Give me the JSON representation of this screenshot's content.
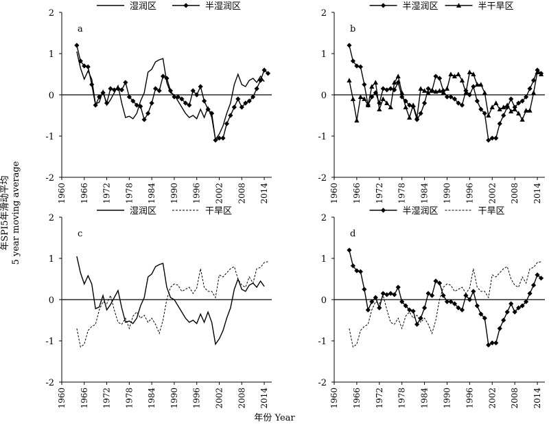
{
  "figure": {
    "ylabel_line1": "年SPI5年滑动平均",
    "ylabel_line2": "5 year moving  average",
    "xlabel": "年份 Year"
  },
  "chart_data": [
    {
      "type": "line",
      "panel_label": "a",
      "xlim": [
        1960,
        2016
      ],
      "ylim": [
        -2,
        2
      ],
      "xticks": [
        1960,
        1966,
        1972,
        1978,
        1984,
        1990,
        1996,
        2002,
        2008,
        2014
      ],
      "yticks": [
        -2,
        -1,
        0,
        1,
        2
      ],
      "zero_line": true,
      "legend": "top",
      "series": [
        {
          "name": "湿润区",
          "style": "solid",
          "marker": "none",
          "color": "#000000",
          "x": [
            1964,
            1965,
            1966,
            1967,
            1968,
            1969,
            1970,
            1971,
            1972,
            1973,
            1974,
            1975,
            1976,
            1977,
            1978,
            1979,
            1980,
            1981,
            1982,
            1983,
            1984,
            1985,
            1986,
            1987,
            1988,
            1989,
            1990,
            1991,
            1992,
            1993,
            1994,
            1995,
            1996,
            1997,
            1998,
            1999,
            2000,
            2001,
            2002,
            2003,
            2004,
            2005,
            2006,
            2007,
            2008,
            2009,
            2010,
            2011,
            2012,
            2013,
            2014
          ],
          "y": [
            1.05,
            0.65,
            0.38,
            0.58,
            0.38,
            -0.22,
            -0.18,
            0.1,
            -0.25,
            -0.12,
            0.05,
            0.22,
            -0.2,
            -0.55,
            -0.52,
            -0.58,
            -0.45,
            -0.15,
            0.05,
            0.55,
            0.62,
            0.8,
            0.85,
            0.88,
            0.3,
            0.05,
            0.0,
            -0.15,
            -0.3,
            -0.45,
            -0.55,
            -0.5,
            -0.58,
            -0.35,
            -0.55,
            -0.3,
            -0.55,
            -1.08,
            -0.95,
            -0.75,
            -0.45,
            -0.2,
            0.25,
            0.5,
            0.25,
            0.2,
            0.35,
            0.4,
            0.3,
            0.45,
            0.32
          ]
        },
        {
          "name": "半湿润区",
          "style": "solid",
          "marker": "diamond",
          "color": "#000000",
          "x": [
            1964,
            1965,
            1966,
            1967,
            1968,
            1969,
            1970,
            1971,
            1972,
            1973,
            1974,
            1975,
            1976,
            1977,
            1978,
            1979,
            1980,
            1981,
            1982,
            1983,
            1984,
            1985,
            1986,
            1987,
            1988,
            1989,
            1990,
            1991,
            1992,
            1993,
            1994,
            1995,
            1996,
            1997,
            1998,
            1999,
            2000,
            2001,
            2002,
            2003,
            2004,
            2005,
            2006,
            2007,
            2008,
            2009,
            2010,
            2011,
            2012,
            2013,
            2014,
            2015
          ],
          "y": [
            1.2,
            0.82,
            0.7,
            0.68,
            0.25,
            -0.25,
            -0.05,
            0.05,
            -0.2,
            0.15,
            0.12,
            0.15,
            0.12,
            0.3,
            -0.05,
            -0.15,
            -0.25,
            -0.28,
            -0.6,
            -0.45,
            -0.2,
            0.15,
            0.1,
            0.45,
            0.4,
            0.1,
            -0.05,
            -0.05,
            -0.1,
            -0.2,
            -0.25,
            0.1,
            0.0,
            0.2,
            -0.15,
            -0.35,
            -0.45,
            -1.1,
            -1.05,
            -1.05,
            -0.7,
            -0.5,
            -0.3,
            -0.1,
            -0.3,
            -0.2,
            -0.15,
            -0.05,
            0.15,
            0.35,
            0.6,
            0.52
          ]
        }
      ]
    },
    {
      "type": "line",
      "panel_label": "b",
      "xlim": [
        1960,
        2016
      ],
      "ylim": [
        -2,
        2
      ],
      "xticks": [
        1960,
        1966,
        1972,
        1978,
        1984,
        1990,
        1996,
        2002,
        2008,
        2014
      ],
      "yticks": [
        -2,
        -1,
        0,
        1,
        2
      ],
      "zero_line": true,
      "legend": "top",
      "series": [
        {
          "name": "半湿润区",
          "style": "solid",
          "marker": "diamond",
          "color": "#000000",
          "x": [
            1964,
            1965,
            1966,
            1967,
            1968,
            1969,
            1970,
            1971,
            1972,
            1973,
            1974,
            1975,
            1976,
            1977,
            1978,
            1979,
            1980,
            1981,
            1982,
            1983,
            1984,
            1985,
            1986,
            1987,
            1988,
            1989,
            1990,
            1991,
            1992,
            1993,
            1994,
            1995,
            1996,
            1997,
            1998,
            1999,
            2000,
            2001,
            2002,
            2003,
            2004,
            2005,
            2006,
            2007,
            2008,
            2009,
            2010,
            2011,
            2012,
            2013,
            2014,
            2015
          ],
          "y": [
            1.2,
            0.82,
            0.7,
            0.68,
            0.25,
            -0.25,
            -0.05,
            0.05,
            -0.2,
            0.15,
            0.12,
            0.15,
            0.12,
            0.3,
            -0.05,
            -0.15,
            -0.25,
            -0.28,
            -0.6,
            -0.45,
            -0.2,
            0.15,
            0.1,
            0.45,
            0.4,
            0.1,
            -0.05,
            -0.05,
            -0.1,
            -0.2,
            -0.25,
            0.1,
            0.0,
            0.2,
            -0.15,
            -0.35,
            -0.45,
            -1.1,
            -1.05,
            -1.05,
            -0.7,
            -0.5,
            -0.3,
            -0.1,
            -0.3,
            -0.2,
            -0.15,
            -0.05,
            0.15,
            0.35,
            0.6,
            0.52
          ]
        },
        {
          "name": "半干旱区",
          "style": "solid",
          "marker": "triangle",
          "color": "#000000",
          "x": [
            1964,
            1965,
            1966,
            1967,
            1968,
            1969,
            1970,
            1971,
            1972,
            1973,
            1974,
            1975,
            1976,
            1977,
            1978,
            1979,
            1980,
            1981,
            1982,
            1983,
            1984,
            1985,
            1986,
            1987,
            1988,
            1989,
            1990,
            1991,
            1992,
            1993,
            1994,
            1995,
            1996,
            1997,
            1998,
            1999,
            2000,
            2001,
            2002,
            2003,
            2004,
            2005,
            2006,
            2007,
            2008,
            2009,
            2010,
            2011,
            2012,
            2013,
            2014,
            2015
          ],
          "y": [
            0.35,
            -0.1,
            -0.62,
            -0.05,
            -0.1,
            -0.25,
            0.2,
            0.3,
            -0.35,
            -0.1,
            -0.2,
            -0.3,
            0.3,
            0.45,
            0.05,
            -0.3,
            -0.55,
            -0.25,
            -0.55,
            0.15,
            0.1,
            0.05,
            0.1,
            0.08,
            0.1,
            0.05,
            0.15,
            0.5,
            0.45,
            0.5,
            0.35,
            0.05,
            0.55,
            0.5,
            0.25,
            0.25,
            0.05,
            -0.5,
            -0.3,
            -0.2,
            -0.35,
            -0.3,
            -0.25,
            -0.4,
            -0.35,
            -0.45,
            -0.6,
            -0.38,
            -0.38,
            0.05,
            0.55,
            0.5
          ]
        }
      ]
    },
    {
      "type": "line",
      "panel_label": "c",
      "xlim": [
        1960,
        2016
      ],
      "ylim": [
        -2,
        2
      ],
      "xticks": [
        1960,
        1966,
        1972,
        1978,
        1984,
        1990,
        1996,
        2002,
        2008,
        2014
      ],
      "yticks": [
        -2,
        -1,
        0,
        1,
        2
      ],
      "zero_line": true,
      "legend": "top",
      "series": [
        {
          "name": "湿润区",
          "style": "solid",
          "marker": "none",
          "color": "#000000",
          "x": [
            1964,
            1965,
            1966,
            1967,
            1968,
            1969,
            1970,
            1971,
            1972,
            1973,
            1974,
            1975,
            1976,
            1977,
            1978,
            1979,
            1980,
            1981,
            1982,
            1983,
            1984,
            1985,
            1986,
            1987,
            1988,
            1989,
            1990,
            1991,
            1992,
            1993,
            1994,
            1995,
            1996,
            1997,
            1998,
            1999,
            2000,
            2001,
            2002,
            2003,
            2004,
            2005,
            2006,
            2007,
            2008,
            2009,
            2010,
            2011,
            2012,
            2013,
            2014
          ],
          "y": [
            1.05,
            0.65,
            0.38,
            0.58,
            0.38,
            -0.22,
            -0.18,
            0.1,
            -0.25,
            -0.12,
            0.05,
            0.22,
            -0.2,
            -0.55,
            -0.52,
            -0.58,
            -0.45,
            -0.15,
            0.05,
            0.55,
            0.62,
            0.8,
            0.85,
            0.88,
            0.3,
            0.05,
            0.0,
            -0.15,
            -0.3,
            -0.45,
            -0.55,
            -0.5,
            -0.58,
            -0.35,
            -0.55,
            -0.3,
            -0.55,
            -1.08,
            -0.95,
            -0.75,
            -0.45,
            -0.2,
            0.25,
            0.5,
            0.25,
            0.2,
            0.35,
            0.4,
            0.3,
            0.45,
            0.32
          ]
        },
        {
          "name": "干旱区",
          "style": "dashed",
          "marker": "none",
          "color": "#000000",
          "x": [
            1964,
            1965,
            1966,
            1967,
            1968,
            1969,
            1970,
            1971,
            1972,
            1973,
            1974,
            1975,
            1976,
            1977,
            1978,
            1979,
            1980,
            1981,
            1982,
            1983,
            1984,
            1985,
            1986,
            1987,
            1988,
            1989,
            1990,
            1991,
            1992,
            1993,
            1994,
            1995,
            1996,
            1997,
            1998,
            1999,
            2000,
            2001,
            2002,
            2003,
            2004,
            2005,
            2006,
            2007,
            2008,
            2009,
            2010,
            2011,
            2012,
            2013,
            2014,
            2015
          ],
          "y": [
            -0.7,
            -1.15,
            -1.08,
            -0.75,
            -0.65,
            -0.6,
            -0.25,
            -0.05,
            -0.1,
            0.1,
            -0.25,
            -0.55,
            -0.6,
            -0.45,
            -0.7,
            -0.4,
            -0.3,
            -0.45,
            -0.38,
            -0.55,
            -0.45,
            -0.6,
            -0.82,
            -0.5,
            0.0,
            0.3,
            0.38,
            0.35,
            0.2,
            0.25,
            0.3,
            0.15,
            0.28,
            0.75,
            0.3,
            0.2,
            0.2,
            0.05,
            0.6,
            0.55,
            0.65,
            0.75,
            0.8,
            0.5,
            0.35,
            0.3,
            0.55,
            0.4,
            0.75,
            0.78,
            0.9,
            0.92
          ]
        }
      ]
    },
    {
      "type": "line",
      "panel_label": "d",
      "xlim": [
        1960,
        2016
      ],
      "ylim": [
        -2,
        2
      ],
      "xticks": [
        1960,
        1966,
        1972,
        1978,
        1984,
        1990,
        1996,
        2002,
        2008,
        2014
      ],
      "yticks": [
        -2,
        -1,
        0,
        1,
        2
      ],
      "zero_line": true,
      "legend": "top",
      "series": [
        {
          "name": "半湿润区",
          "style": "solid",
          "marker": "diamond",
          "color": "#000000",
          "x": [
            1964,
            1965,
            1966,
            1967,
            1968,
            1969,
            1970,
            1971,
            1972,
            1973,
            1974,
            1975,
            1976,
            1977,
            1978,
            1979,
            1980,
            1981,
            1982,
            1983,
            1984,
            1985,
            1986,
            1987,
            1988,
            1989,
            1990,
            1991,
            1992,
            1993,
            1994,
            1995,
            1996,
            1997,
            1998,
            1999,
            2000,
            2001,
            2002,
            2003,
            2004,
            2005,
            2006,
            2007,
            2008,
            2009,
            2010,
            2011,
            2012,
            2013,
            2014,
            2015
          ],
          "y": [
            1.2,
            0.82,
            0.7,
            0.68,
            0.25,
            -0.25,
            -0.05,
            0.05,
            -0.2,
            0.15,
            0.12,
            0.15,
            0.12,
            0.3,
            -0.05,
            -0.15,
            -0.25,
            -0.28,
            -0.6,
            -0.45,
            -0.2,
            0.15,
            0.1,
            0.45,
            0.4,
            0.1,
            -0.05,
            -0.05,
            -0.1,
            -0.2,
            -0.25,
            0.1,
            0.0,
            0.2,
            -0.15,
            -0.35,
            -0.45,
            -1.1,
            -1.05,
            -1.05,
            -0.7,
            -0.5,
            -0.3,
            -0.1,
            -0.3,
            -0.2,
            -0.15,
            -0.05,
            0.15,
            0.35,
            0.6,
            0.52
          ]
        },
        {
          "name": "干旱区",
          "style": "dashed",
          "marker": "none",
          "color": "#000000",
          "x": [
            1964,
            1965,
            1966,
            1967,
            1968,
            1969,
            1970,
            1971,
            1972,
            1973,
            1974,
            1975,
            1976,
            1977,
            1978,
            1979,
            1980,
            1981,
            1982,
            1983,
            1984,
            1985,
            1986,
            1987,
            1988,
            1989,
            1990,
            1991,
            1992,
            1993,
            1994,
            1995,
            1996,
            1997,
            1998,
            1999,
            2000,
            2001,
            2002,
            2003,
            2004,
            2005,
            2006,
            2007,
            2008,
            2009,
            2010,
            2011,
            2012,
            2013,
            2014,
            2015
          ],
          "y": [
            -0.7,
            -1.15,
            -1.08,
            -0.75,
            -0.65,
            -0.6,
            -0.25,
            -0.05,
            -0.1,
            0.1,
            -0.25,
            -0.55,
            -0.6,
            -0.45,
            -0.7,
            -0.4,
            -0.3,
            -0.45,
            -0.38,
            -0.55,
            -0.45,
            -0.6,
            -0.82,
            -0.5,
            0.0,
            0.3,
            0.38,
            0.35,
            0.2,
            0.25,
            0.3,
            0.15,
            0.28,
            0.75,
            0.3,
            0.2,
            0.2,
            0.05,
            0.6,
            0.55,
            0.65,
            0.75,
            0.8,
            0.5,
            0.35,
            0.3,
            0.55,
            0.4,
            0.75,
            0.78,
            0.9,
            0.92
          ]
        }
      ]
    }
  ]
}
